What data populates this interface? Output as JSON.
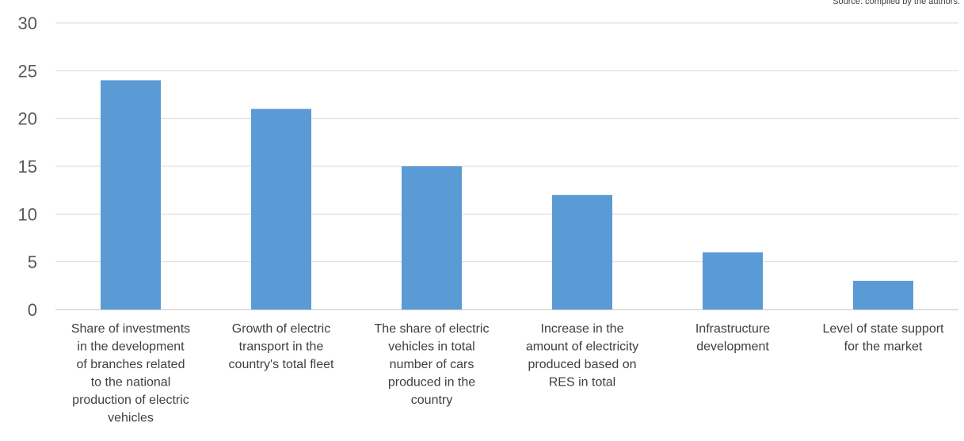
{
  "source_note": "Source: compiled by the authors.",
  "chart_data": {
    "type": "bar",
    "title": "",
    "xlabel": "",
    "ylabel": "",
    "ylim": [
      0,
      30
    ],
    "yticks": [
      0,
      5,
      10,
      15,
      20,
      25,
      30
    ],
    "grid": true,
    "bar_color": "#5B9BD5",
    "categories": [
      [
        "Share of investments",
        "in the development",
        "of branches related",
        "to the national",
        "production of electric",
        "vehicles"
      ],
      [
        "Growth of electric",
        "transport in the",
        "country's total fleet"
      ],
      [
        "The share of electric",
        "vehicles in total",
        "number of cars",
        "produced in the",
        "country"
      ],
      [
        "Increase in the",
        "amount of electricity",
        "produced based on",
        "RES in total"
      ],
      [
        "Infrastructure",
        "development"
      ],
      [
        "Level of state support",
        "for the market"
      ]
    ],
    "values": [
      24,
      21,
      15,
      12,
      6,
      3
    ]
  }
}
